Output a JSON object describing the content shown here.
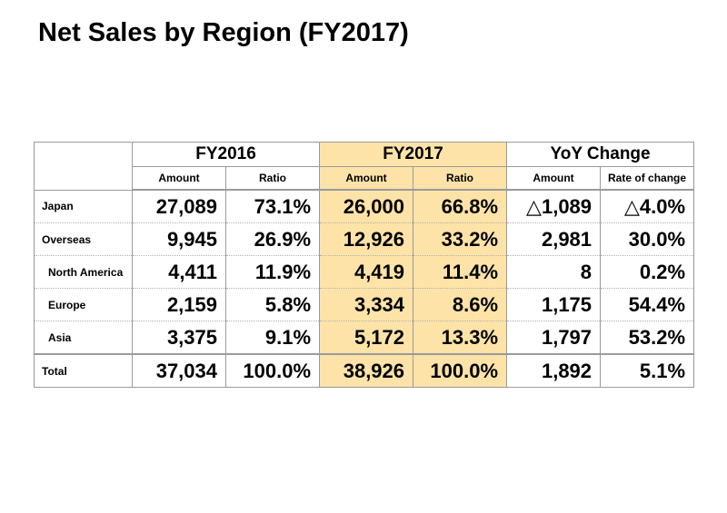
{
  "title": "Net Sales by Region (FY2017)",
  "table": {
    "groups": [
      "FY2016",
      "FY2017",
      "YoY Change"
    ],
    "subheaders": [
      "Amount",
      "Ratio",
      "Amount",
      "Ratio",
      "Amount",
      "Rate of change"
    ],
    "rows": [
      {
        "label": "Japan",
        "values": [
          "27,089",
          "73.1%",
          "26,000",
          "66.8%",
          "△1,089",
          "△4.0%"
        ]
      },
      {
        "label": "Overseas",
        "values": [
          "9,945",
          "26.9%",
          "12,926",
          "33.2%",
          "2,981",
          "30.0%"
        ]
      },
      {
        "label": "North America",
        "values": [
          "4,411",
          "11.9%",
          "4,419",
          "11.4%",
          "8",
          "0.2%"
        ]
      },
      {
        "label": "Europe",
        "values": [
          "2,159",
          "5.8%",
          "3,334",
          "8.6%",
          "1,175",
          "54.4%"
        ]
      },
      {
        "label": "Asia",
        "values": [
          "3,375",
          "9.1%",
          "5,172",
          "13.3%",
          "1,797",
          "53.2%"
        ]
      },
      {
        "label": "Total",
        "values": [
          "37,034",
          "100.0%",
          "38,926",
          "100.0%",
          "1,892",
          "5.1%"
        ]
      }
    ]
  },
  "colors": {
    "highlight": "#fde3a8",
    "border": "#9a9a9a"
  }
}
